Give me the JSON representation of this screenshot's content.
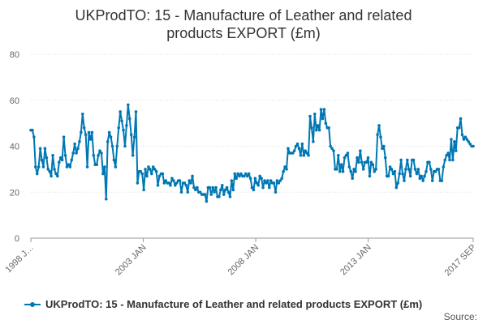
{
  "chart_data": {
    "type": "line",
    "title_lines": [
      "UKProdTO: 15 - Manufacture of Leather and related",
      "products EXPORT (£m)"
    ],
    "xlabel": "",
    "ylabel": "",
    "ylim": [
      0,
      80
    ],
    "yticks": [
      "0",
      "20",
      "40",
      "60",
      "80"
    ],
    "xtick_labels": [
      "1998 J…",
      "2003 JAN",
      "2008 JAN",
      "2013 JAN",
      "2017 SEP"
    ],
    "x_start": "1998-01",
    "x_end": "2017-09",
    "grid": true,
    "legend_position": "bottom-left",
    "series_color": "#0077b3",
    "credits": "Source:",
    "series": [
      {
        "name": "UKProdTO: 15 - Manufacture of Leather and related products EXPORT (£m)",
        "values": [
          47,
          47,
          44,
          31,
          28,
          31,
          39,
          34,
          31,
          39,
          35,
          30,
          29,
          27,
          36,
          30,
          28,
          27,
          33,
          35,
          34,
          44,
          36,
          31,
          32,
          31,
          34,
          37,
          41,
          37,
          39,
          42,
          46,
          54,
          48,
          45,
          31,
          46,
          43,
          46,
          36,
          32,
          32,
          36,
          38,
          37,
          28,
          31,
          17,
          42,
          46,
          44,
          40,
          34,
          31,
          40,
          48,
          55,
          51,
          47,
          40,
          49,
          58,
          52,
          45,
          36,
          44,
          55,
          24,
          29,
          29,
          28,
          21,
          30,
          27,
          31,
          30,
          28,
          31,
          30,
          29,
          23,
          27,
          28,
          28,
          24,
          25,
          24,
          24,
          23,
          26,
          25,
          23,
          24,
          25,
          25,
          20,
          24,
          24,
          23,
          20,
          25,
          24,
          27,
          22,
          21,
          22,
          20,
          20,
          19,
          19,
          19,
          16,
          22,
          22,
          19,
          22,
          20,
          22,
          18,
          18,
          21,
          23,
          19,
          21,
          22,
          20,
          18,
          25,
          21,
          28,
          26,
          28,
          27,
          28,
          27,
          27,
          28,
          27,
          28,
          26,
          22,
          21,
          26,
          24,
          23,
          27,
          26,
          22,
          25,
          24,
          25,
          22,
          25,
          24,
          24,
          20,
          25,
          24,
          25,
          26,
          29,
          31,
          30,
          39,
          37,
          37,
          37,
          38,
          40,
          41,
          39,
          36,
          41,
          36,
          38,
          37,
          36,
          53,
          48,
          42,
          54,
          47,
          49,
          47,
          56,
          52,
          56,
          50,
          48,
          48,
          40,
          39,
          38,
          30,
          30,
          36,
          29,
          32,
          29,
          35,
          36,
          37,
          31,
          29,
          26,
          30,
          29,
          35,
          33,
          38,
          33,
          30,
          33,
          33,
          35,
          27,
          33,
          32,
          29,
          30,
          45,
          49,
          44,
          39,
          40,
          35,
          27,
          27,
          31,
          30,
          28,
          29,
          22,
          24,
          28,
          34,
          28,
          25,
          30,
          34,
          30,
          27,
          34,
          34,
          30,
          28,
          30,
          26,
          27,
          25,
          27,
          29,
          33,
          33,
          30,
          25,
          29,
          29,
          30,
          30,
          25,
          25,
          31,
          34,
          36,
          37,
          34,
          43,
          34,
          42,
          38,
          48,
          48,
          52,
          45,
          43,
          44,
          43,
          42,
          41,
          40,
          40
        ]
      }
    ]
  }
}
